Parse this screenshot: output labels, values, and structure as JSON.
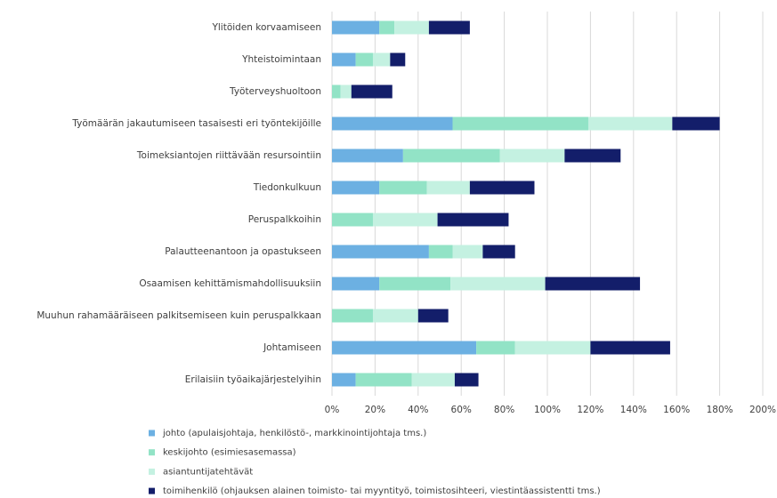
{
  "chart_data": {
    "type": "stacked_barh",
    "categories": [
      "Ylitöiden korvaamiseen",
      "Yhteistoimintaan",
      "Työterveyshuoltoon",
      "Työmäärän jakautumiseen tasaisesti eri työntekijöille",
      "Toimeksiantojen riittävään resursointiin",
      "Tiedonkulkuun",
      "Peruspalkkoihin",
      "Palautteenantoon ja opastukseen",
      "Osaamisen kehittämismahdollisuuksiin",
      "Muuhun rahamääräiseen palkitsemiseen kuin peruspalkkaan",
      "Johtamiseen",
      "Erilaisiin työaikajärjestelyihin"
    ],
    "series": [
      {
        "name": "johto (apulaisjohtaja, henkilöstö-, markkinointijohtaja tms.)",
        "color": "#6cb0e2",
        "values": [
          22,
          11,
          0,
          56,
          33,
          22,
          0,
          45,
          22,
          0,
          67,
          11
        ]
      },
      {
        "name": "keskijohto (esimiesasemassa)",
        "color": "#92e3c6",
        "values": [
          7,
          8,
          4,
          63,
          45,
          22,
          19,
          11,
          33,
          19,
          18,
          26
        ]
      },
      {
        "name": "asiantuntijatehtävät",
        "color": "#c4f1e1",
        "values": [
          16,
          8,
          5,
          39,
          30,
          20,
          30,
          14,
          44,
          21,
          35,
          20
        ]
      },
      {
        "name": "toimihenkilö (ohjauksen alainen toimisto- tai myyntityö, toimistosihteeri, viestintäassistentti tms.)",
        "color": "#131e6a",
        "values": [
          19,
          7,
          19,
          22,
          26,
          30,
          33,
          15,
          44,
          14,
          37,
          11
        ]
      }
    ],
    "xlim": [
      0,
      200
    ],
    "xticks": [
      {
        "value": 0,
        "label": "0%"
      },
      {
        "value": 20,
        "label": "20%"
      },
      {
        "value": 40,
        "label": "40%"
      },
      {
        "value": 60,
        "label": "60%"
      },
      {
        "value": 80,
        "label": "80%"
      },
      {
        "value": 100,
        "label": "100%"
      },
      {
        "value": 120,
        "label": "120%"
      },
      {
        "value": 140,
        "label": "140%"
      },
      {
        "value": 160,
        "label": "160%"
      },
      {
        "value": 180,
        "label": "180%"
      },
      {
        "value": 200,
        "label": "200%"
      }
    ],
    "grid": true
  }
}
